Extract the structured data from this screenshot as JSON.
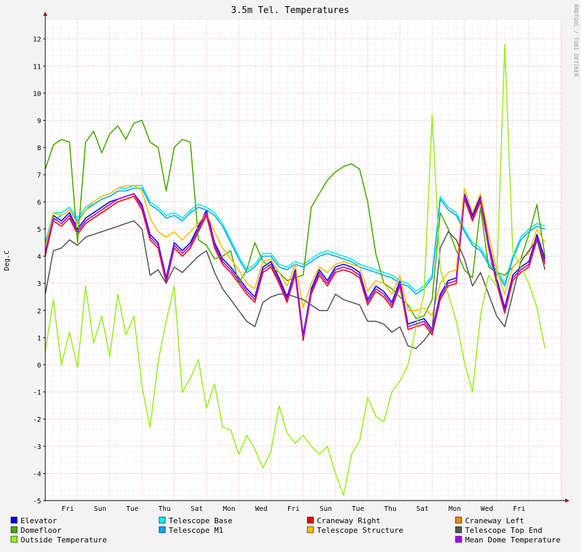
{
  "window": {
    "title": "3.5m Tel. Temperatures",
    "watermark": "RRDTOOL / TOBI OETIKER"
  },
  "colors": {
    "background": "#f3f3f3",
    "canvas": "#ffffff",
    "grid_minor": "#e8c8c8",
    "grid_major": "#d89090",
    "axis": "#000000"
  },
  "chart_data": {
    "type": "line",
    "title": "3.5m Tel. Temperatures",
    "ylabel": "Deg.C",
    "xlabel": "",
    "ylim": [
      -5,
      12.7
    ],
    "yticks": [
      -5,
      -4,
      -3,
      -2,
      -1,
      0,
      1,
      2,
      3,
      4,
      5,
      6,
      7,
      8,
      9,
      10,
      11,
      12
    ],
    "xlim": [
      0,
      16
    ],
    "xticks": [
      {
        "x": 0.7,
        "label": "Fri"
      },
      {
        "x": 1.7,
        "label": "Sun"
      },
      {
        "x": 2.7,
        "label": "Tue"
      },
      {
        "x": 3.7,
        "label": "Thu"
      },
      {
        "x": 4.7,
        "label": "Sat"
      },
      {
        "x": 5.7,
        "label": "Mon"
      },
      {
        "x": 6.7,
        "label": "Wed"
      },
      {
        "x": 7.7,
        "label": "Fri"
      },
      {
        "x": 8.7,
        "label": "Sun"
      },
      {
        "x": 9.7,
        "label": "Tue"
      },
      {
        "x": 10.7,
        "label": "Thu"
      },
      {
        "x": 11.7,
        "label": "Sat"
      },
      {
        "x": 12.7,
        "label": "Mon"
      },
      {
        "x": 13.7,
        "label": "Wed"
      },
      {
        "x": 14.7,
        "label": "Fri"
      }
    ],
    "grid": true,
    "legend": "bottom",
    "x": [
      0,
      0.25,
      0.5,
      0.75,
      1,
      1.25,
      1.5,
      1.75,
      2,
      2.25,
      2.5,
      2.75,
      3,
      3.25,
      3.5,
      3.75,
      4,
      4.25,
      4.5,
      4.75,
      5,
      5.25,
      5.5,
      5.75,
      6,
      6.25,
      6.5,
      6.75,
      7,
      7.25,
      7.5,
      7.75,
      8,
      8.25,
      8.5,
      8.75,
      9,
      9.25,
      9.5,
      9.75,
      10,
      10.25,
      10.5,
      10.75,
      11,
      11.25,
      11.5,
      11.75,
      12,
      12.25,
      12.5,
      12.75,
      13,
      13.25,
      13.5,
      13.75,
      14,
      14.25,
      14.5,
      14.75,
      15,
      15.25,
      15.5
    ],
    "series": [
      {
        "name": "Elevator",
        "color": "#0000ee",
        "values": [
          4.2,
          5.5,
          5.3,
          5.6,
          5.0,
          5.4,
          5.6,
          5.8,
          6.0,
          6.1,
          6.2,
          6.3,
          5.9,
          4.8,
          4.5,
          3.2,
          4.5,
          4.2,
          4.5,
          5.1,
          5.7,
          4.5,
          3.9,
          3.6,
          3.2,
          2.8,
          2.5,
          3.6,
          3.8,
          3.2,
          2.5,
          3.5,
          1.1,
          2.8,
          3.5,
          3.1,
          3.6,
          3.7,
          3.6,
          3.4,
          2.4,
          2.9,
          2.7,
          2.3,
          3.1,
          1.5,
          1.6,
          1.7,
          1.3,
          2.6,
          3.1,
          3.2,
          6.3,
          5.5,
          6.2,
          4.5,
          3.2,
          2.1,
          3.3,
          3.6,
          3.8,
          4.8,
          3.9
        ]
      },
      {
        "name": "Telescope Base",
        "color": "#00eeee",
        "values": [
          4.5,
          5.6,
          5.6,
          5.8,
          5.4,
          5.8,
          6.0,
          6.2,
          6.3,
          6.5,
          6.5,
          6.6,
          6.6,
          6.0,
          5.8,
          5.5,
          5.6,
          5.4,
          5.7,
          5.9,
          5.8,
          5.6,
          5.2,
          4.6,
          4.0,
          3.5,
          3.7,
          4.1,
          4.1,
          3.7,
          3.6,
          3.8,
          3.7,
          3.9,
          4.1,
          4.2,
          4.1,
          4.0,
          3.9,
          3.7,
          3.6,
          3.5,
          3.4,
          3.3,
          3.1,
          3.0,
          2.7,
          2.9,
          3.3,
          6.2,
          5.8,
          5.6,
          5.0,
          4.5,
          4.3,
          3.8,
          3.5,
          3.0,
          4.0,
          4.7,
          5.0,
          5.2,
          5.1
        ]
      },
      {
        "name": "Craneway Right",
        "color": "#ee0000",
        "values": [
          4.0,
          5.3,
          5.1,
          5.4,
          4.8,
          5.2,
          5.4,
          5.6,
          5.8,
          6.0,
          6.1,
          6.2,
          5.7,
          4.6,
          4.3,
          3.0,
          4.3,
          4.0,
          4.3,
          4.9,
          5.5,
          4.3,
          3.7,
          3.4,
          3.0,
          2.6,
          2.3,
          3.4,
          3.6,
          3.0,
          2.3,
          3.3,
          0.9,
          2.6,
          3.3,
          2.9,
          3.4,
          3.5,
          3.4,
          3.2,
          2.2,
          2.7,
          2.5,
          2.1,
          2.9,
          1.3,
          1.4,
          1.5,
          1.1,
          2.4,
          2.9,
          3.0,
          6.1,
          5.3,
          6.0,
          4.3,
          3.0,
          1.9,
          3.1,
          3.4,
          3.6,
          4.6,
          3.7
        ]
      },
      {
        "name": "Craneway Left",
        "color": "#ee8800",
        "values": [
          4.1,
          5.4,
          5.2,
          5.5,
          4.9,
          5.3,
          5.5,
          5.7,
          5.9,
          6.1,
          6.2,
          6.3,
          5.8,
          4.7,
          4.4,
          3.1,
          4.4,
          4.1,
          4.4,
          5.0,
          5.6,
          4.4,
          3.8,
          3.5,
          3.1,
          2.7,
          2.4,
          3.5,
          3.7,
          3.1,
          2.4,
          3.4,
          1.0,
          2.7,
          3.4,
          3.0,
          3.5,
          3.6,
          3.5,
          3.3,
          2.3,
          2.8,
          2.6,
          2.2,
          3.0,
          1.4,
          1.5,
          1.6,
          1.2,
          2.5,
          3.0,
          3.1,
          6.2,
          5.4,
          6.1,
          4.4,
          3.1,
          2.0,
          3.2,
          3.5,
          3.7,
          4.7,
          3.8
        ]
      },
      {
        "name": "Domefloor",
        "color": "#44aa00",
        "values": [
          7.2,
          8.1,
          8.3,
          8.2,
          4.5,
          8.2,
          8.6,
          7.8,
          8.5,
          8.8,
          8.3,
          8.9,
          9.0,
          8.2,
          8.0,
          6.4,
          8.0,
          8.3,
          8.2,
          4.6,
          4.4,
          3.9,
          4.0,
          4.2,
          3.0,
          3.5,
          4.5,
          3.8,
          3.6,
          3.4,
          3.1,
          3.2,
          3.3,
          5.8,
          6.3,
          6.8,
          7.1,
          7.3,
          7.4,
          7.2,
          6.0,
          4.1,
          3.0,
          2.8,
          2.5,
          2.2,
          1.7,
          1.8,
          2.4,
          5.6,
          5.0,
          4.2,
          3.5,
          3.2,
          5.8,
          3.6,
          3.4,
          3.3,
          3.6,
          3.9,
          4.8,
          5.9,
          4.0
        ]
      },
      {
        "name": "Telescope M1",
        "color": "#00aaee",
        "values": [
          4.5,
          5.3,
          5.5,
          5.7,
          5.3,
          5.7,
          5.9,
          6.1,
          6.2,
          6.4,
          6.4,
          6.5,
          6.5,
          5.9,
          5.7,
          5.4,
          5.5,
          5.3,
          5.6,
          5.8,
          5.7,
          5.5,
          5.1,
          4.5,
          3.9,
          3.4,
          3.6,
          4.0,
          4.0,
          3.6,
          3.5,
          3.7,
          3.6,
          3.8,
          4.0,
          4.1,
          4.0,
          3.9,
          3.8,
          3.6,
          3.5,
          3.4,
          3.3,
          3.2,
          3.0,
          2.9,
          2.6,
          2.8,
          3.2,
          6.1,
          5.7,
          5.5,
          4.9,
          4.4,
          4.2,
          3.7,
          3.4,
          2.9,
          3.9,
          4.6,
          4.9,
          5.1,
          5.0
        ]
      },
      {
        "name": "Telescope Structure",
        "color": "#ffbb00",
        "values": [
          4.3,
          5.6,
          5.5,
          5.7,
          5.2,
          5.7,
          6.0,
          6.2,
          6.3,
          6.5,
          6.6,
          6.6,
          6.4,
          5.4,
          4.9,
          4.7,
          4.9,
          4.6,
          4.9,
          5.2,
          5.6,
          4.9,
          4.3,
          3.9,
          3.5,
          3.0,
          2.8,
          3.8,
          3.9,
          3.4,
          2.9,
          3.7,
          2.1,
          3.0,
          3.6,
          3.4,
          3.7,
          3.8,
          3.7,
          3.6,
          2.7,
          3.1,
          3.0,
          2.6,
          3.3,
          2.0,
          2.0,
          2.1,
          1.8,
          3.0,
          3.4,
          3.5,
          6.5,
          5.6,
          6.3,
          4.8,
          3.5,
          2.6,
          3.6,
          3.9,
          4.1,
          5.0,
          4.5
        ]
      },
      {
        "name": "Telescope Top End",
        "color": "#555555",
        "values": [
          2.6,
          4.2,
          4.3,
          4.6,
          4.4,
          4.7,
          4.8,
          4.9,
          5.0,
          5.1,
          5.2,
          5.3,
          5.0,
          3.3,
          3.5,
          3.0,
          3.6,
          3.4,
          3.7,
          4.0,
          4.2,
          3.4,
          2.8,
          2.4,
          2.0,
          1.6,
          1.4,
          2.3,
          2.5,
          2.6,
          2.6,
          2.5,
          2.4,
          2.2,
          2.0,
          2.0,
          2.6,
          2.4,
          2.3,
          2.2,
          1.6,
          1.6,
          1.5,
          1.2,
          1.4,
          0.7,
          0.6,
          0.9,
          1.3,
          4.3,
          4.9,
          4.6,
          3.9,
          2.9,
          3.4,
          2.6,
          1.8,
          1.4,
          2.6,
          3.8,
          4.2,
          4.6,
          3.5
        ]
      },
      {
        "name": "Outside Temperature",
        "color": "#99ee22",
        "values": [
          0.5,
          2.4,
          0.0,
          1.2,
          -0.1,
          2.9,
          0.8,
          1.8,
          0.3,
          2.6,
          1.1,
          1.8,
          -0.8,
          -2.3,
          0.1,
          1.6,
          2.9,
          -1.0,
          -0.5,
          0.2,
          -1.6,
          -0.7,
          -2.3,
          -2.4,
          -3.3,
          -2.6,
          -3.1,
          -3.8,
          -3.2,
          -1.5,
          -2.5,
          -2.9,
          -2.6,
          -3.0,
          -3.3,
          -3.0,
          -4.0,
          -4.8,
          -3.3,
          -2.8,
          -1.2,
          -1.9,
          -2.1,
          -1.0,
          -0.6,
          0.0,
          1.4,
          2.6,
          9.2,
          3.5,
          2.6,
          1.6,
          0.1,
          -1.0,
          1.8,
          3.3,
          2.9,
          11.8,
          4.2,
          3.6,
          3.0,
          2.1,
          0.6
        ]
      },
      {
        "name": "Mean Dome Temperature",
        "color": "#aa00ee",
        "values": [
          4.1,
          5.4,
          5.2,
          5.5,
          4.9,
          5.3,
          5.5,
          5.7,
          5.9,
          6.1,
          6.2,
          6.3,
          5.8,
          4.7,
          4.4,
          3.1,
          4.4,
          4.1,
          4.4,
          5.0,
          5.6,
          4.4,
          3.8,
          3.5,
          3.1,
          2.7,
          2.4,
          3.5,
          3.7,
          3.1,
          2.4,
          3.4,
          1.0,
          2.7,
          3.4,
          3.0,
          3.5,
          3.6,
          3.5,
          3.3,
          2.3,
          2.8,
          2.6,
          2.2,
          3.0,
          1.4,
          1.5,
          1.6,
          1.2,
          2.5,
          3.0,
          3.1,
          6.2,
          5.4,
          6.1,
          4.4,
          3.1,
          2.0,
          3.2,
          3.5,
          3.7,
          4.7,
          3.8
        ]
      }
    ]
  }
}
